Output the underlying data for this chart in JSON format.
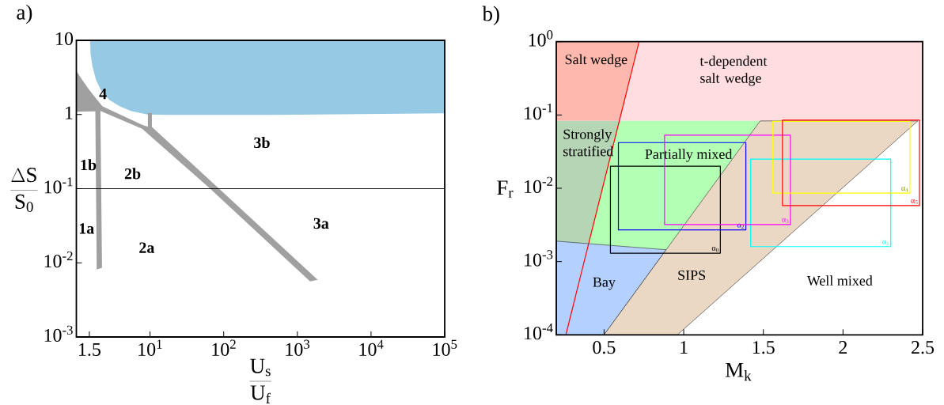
{
  "chart_data": [
    {
      "type": "area",
      "title": "a)",
      "xlabel": "\\frac{\\mathrm{U}_{\\mathrm{s}}}{\\mathrm{U}_{\\mathrm{f}}}",
      "ylabel": "\\frac{\\Delta\\mathrm{S}}{\\mathrm{S}_{\\mathrm{0}}}",
      "log": "xy",
      "xlim": [
        1,
        100000
      ],
      "ylim": [
        0.001,
        10
      ],
      "xticks": [
        1.5,
        {
          "value": 10,
          "label": "10$^{1}$"
        },
        {
          "value": 100,
          "label": "10$^{2}$"
        },
        {
          "value": 1000,
          "label": "10$^{3}$"
        },
        {
          "value": 10000,
          "label": "10$^{4}$"
        },
        {
          "value": 100000,
          "label": "10$^{5}$"
        }
      ],
      "yticks": [
        {
          "value": 0.001,
          "label": "10$^{-3}$"
        },
        {
          "value": 0.01,
          "label": "10$^{-2}$"
        },
        {
          "value": 0.1,
          "label": "10$^{-1}$"
        },
        1,
        10
      ],
      "series": [
        {
          "color": "#95c9e4",
          "x": [
            1.54,
            100000,
            100000,
            500,
            17.8,
            9.2,
            5.6,
            3.9,
            2.8,
            2.17,
            1.85,
            1.66,
            1.56
          ],
          "values": [
            10,
            10,
            1.04,
            0.99,
            0.99,
            1.0,
            1.11,
            1.29,
            1.58,
            2.1,
            2.92,
            4.4,
            6.6
          ]
        },
        {
          "color": "#a0a0a0",
          "x": [
            1,
            1.17,
            1.5,
            1.85,
            2.27,
            7.8,
            9.35,
            9.35,
            10.6,
            10.6,
            82,
            1890,
            1490,
            62,
            7.8,
            2.12,
            2.23,
            1.89,
            1.81,
            1
          ],
          "values": [
            3.89,
            3.04,
            2.14,
            1.64,
            1.29,
            0.725,
            0.684,
            1.05,
            1.05,
            0.678,
            0.105,
            0.0059,
            0.0056,
            0.105,
            0.641,
            1.12,
            0.0086,
            0.0081,
            1.1,
            1.09
          ]
        }
      ],
      "ref_lines": [
        {
          "axis": "y",
          "value": 0.1,
          "color": "#000000"
        }
      ],
      "annotations": [
        "4",
        "1b",
        "2b",
        "3b",
        "1a",
        "2a",
        "3a"
      ]
    },
    {
      "type": "area",
      "title": "b)",
      "xlabel": "M$_{k}$",
      "ylabel": "F$_{r}$",
      "log": "y",
      "xlim": [
        0.2,
        2.5
      ],
      "ylim": [
        0.0001,
        1
      ],
      "xticks": [
        0.5,
        1,
        1.5,
        2,
        2.5
      ],
      "yticks": [
        {
          "value": 0.0001,
          "label": "10$^{-4}$"
        },
        {
          "value": 0.001,
          "label": "10$^{-3}$"
        },
        {
          "value": 0.01,
          "label": "10$^{-2}$"
        },
        {
          "value": 0.1,
          "label": "10$^{-1}$"
        },
        {
          "value": 1,
          "label": "10$^{0}$"
        }
      ],
      "series": [
        {
          "color": "#ffb8ad",
          "x": [
            0.2,
            0.2,
            0.72,
            0.6
          ],
          "values": [
            0.083,
            1,
            1,
            0.083
          ]
        },
        {
          "color": "#ffdde1",
          "x": [
            0.6,
            0.72,
            2.5,
            2.5
          ],
          "values": [
            0.083,
            1,
            1,
            0.083
          ]
        },
        {
          "color": "#b5d5b5",
          "x": [
            0.2,
            0.6,
            0.4,
            0.2
          ],
          "values": [
            0.083,
            0.083,
            0.00175,
            0.0019
          ]
        },
        {
          "color": "#b3ffb3",
          "x": [
            0.6,
            1.48,
            0.89,
            0.4
          ],
          "values": [
            0.083,
            0.083,
            0.00145,
            0.00175
          ]
        },
        {
          "color": "#b3d0ff",
          "x": [
            0.2,
            0.89,
            0.5,
            0.2
          ],
          "values": [
            0.0019,
            0.00145,
            0.0001,
            0.0001
          ],
          "line_style": "solid"
        },
        {
          "color": "#ead8c4",
          "x": [
            0.5,
            1.48,
            2.47,
            0.96
          ],
          "values": [
            0.0001,
            0.083,
            0.083,
            0.0001
          ],
          "line_style": "solid"
        },
        {
          "type": "line",
          "color": "#ff0000",
          "x": [
            0.26,
            0.72
          ],
          "values": [
            0.0001,
            1
          ]
        },
        {
          "type": "line",
          "name": "α$_{0}$",
          "color": "#000000",
          "x": [
            0.54,
            1.23,
            1.23,
            0.54,
            0.54,
            1.23
          ],
          "values": [
            0.02,
            0.02,
            0.0013,
            0.0013,
            0.02,
            0.02
          ]
        },
        {
          "type": "line",
          "name": "α$_{1}$",
          "color": "#00ffff",
          "x": [
            1.42,
            2.3,
            2.3,
            1.42,
            1.42,
            2.3
          ],
          "values": [
            0.025,
            0.025,
            0.0016,
            0.0016,
            0.025,
            0.025
          ]
        },
        {
          "type": "line",
          "name": "α$_{2}$",
          "color": "#0000ff",
          "x": [
            0.59,
            1.39,
            1.39,
            0.59,
            0.59,
            1.39
          ],
          "values": [
            0.042,
            0.042,
            0.0027,
            0.0027,
            0.042,
            0.042
          ]
        },
        {
          "type": "line",
          "name": "α$_{3}$",
          "color": "#ff00ff",
          "x": [
            0.88,
            1.67,
            1.67,
            0.88,
            0.88,
            1.67
          ],
          "values": [
            0.053,
            0.053,
            0.0032,
            0.0032,
            0.053,
            0.053
          ]
        },
        {
          "type": "line",
          "name": "α$_{4}$",
          "color": "#ffff00",
          "x": [
            1.56,
            2.42,
            2.42,
            1.56,
            1.56,
            2.42
          ],
          "values": [
            0.082,
            0.082,
            0.0086,
            0.0086,
            0.082,
            0.082
          ]
        },
        {
          "type": "line",
          "name": "α$_{5}$",
          "color": "#ff0000",
          "x": [
            1.62,
            2.48,
            2.48,
            1.62,
            1.62,
            2.48
          ],
          "values": [
            0.085,
            0.085,
            0.0058,
            0.0058,
            0.085,
            0.085
          ]
        }
      ],
      "annotations": [
        "Salt wedge",
        "t-dependent salt wedge",
        "Strongly stratified",
        "Partially mixed",
        "Bay",
        "SIPS",
        "Well mixed"
      ]
    }
  ]
}
